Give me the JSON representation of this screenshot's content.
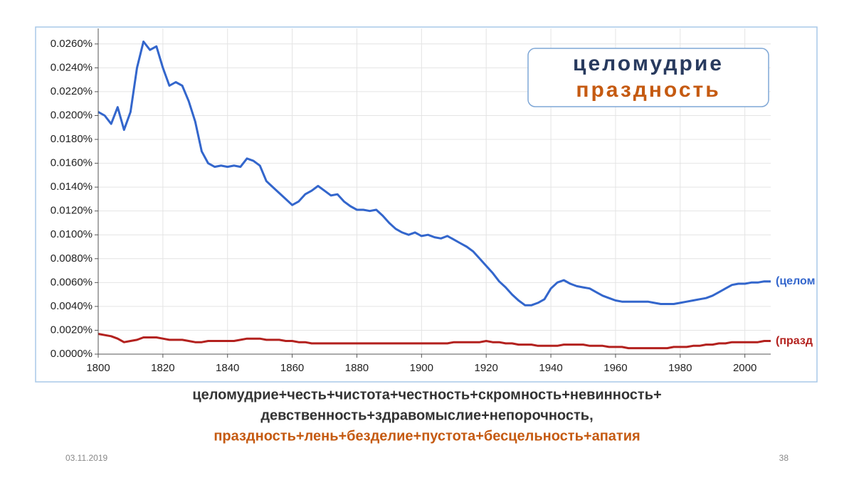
{
  "chart_data": {
    "type": "line",
    "annotation": [
      "целомудрие",
      "праздность"
    ],
    "caption": [
      "целомудрие+честь+чистота+честность+скромность+невинность+",
      "девственность+здравомыслие+непорочность,",
      "праздность+лень+безделие+пустота+бесцельность+апатия"
    ],
    "date": "03.11.2019",
    "page": "38",
    "xlim": [
      1800,
      2008
    ],
    "xticks": [
      1800,
      1820,
      1840,
      1860,
      1880,
      1900,
      1920,
      1940,
      1960,
      1980,
      2000
    ],
    "ylim": [
      0,
      0.0273
    ],
    "yticks": [
      {
        "value": 0,
        "label": "0.0000%"
      },
      {
        "value": 0.002,
        "label": "0.0020%"
      },
      {
        "value": 0.004,
        "label": "0.0040%"
      },
      {
        "value": 0.006,
        "label": "0.0060%"
      },
      {
        "value": 0.008,
        "label": "0.0080%"
      },
      {
        "value": 0.01,
        "label": "0.0100%"
      },
      {
        "value": 0.012,
        "label": "0.0120%"
      },
      {
        "value": 0.014,
        "label": "0.0140%"
      },
      {
        "value": 0.016,
        "label": "0.0160%"
      },
      {
        "value": 0.018,
        "label": "0.0180%"
      },
      {
        "value": 0.02,
        "label": "0.0200%"
      },
      {
        "value": 0.022,
        "label": "0.0220%"
      },
      {
        "value": 0.024,
        "label": "0.0240%"
      },
      {
        "value": 0.026,
        "label": "0.0260%"
      }
    ],
    "grid": true,
    "x": [
      1800,
      1802,
      1804,
      1806,
      1808,
      1810,
      1812,
      1814,
      1816,
      1818,
      1820,
      1822,
      1824,
      1826,
      1828,
      1830,
      1832,
      1834,
      1836,
      1838,
      1840,
      1842,
      1844,
      1846,
      1848,
      1850,
      1852,
      1854,
      1856,
      1858,
      1860,
      1862,
      1864,
      1866,
      1868,
      1870,
      1872,
      1874,
      1876,
      1878,
      1880,
      1882,
      1884,
      1886,
      1888,
      1890,
      1892,
      1894,
      1896,
      1898,
      1900,
      1902,
      1904,
      1906,
      1908,
      1910,
      1912,
      1914,
      1916,
      1918,
      1920,
      1922,
      1924,
      1926,
      1928,
      1930,
      1932,
      1934,
      1936,
      1938,
      1940,
      1942,
      1944,
      1946,
      1948,
      1950,
      1952,
      1954,
      1956,
      1958,
      1960,
      1962,
      1964,
      1966,
      1968,
      1970,
      1972,
      1974,
      1976,
      1978,
      1980,
      1982,
      1984,
      1986,
      1988,
      1990,
      1992,
      1994,
      1996,
      1998,
      2000,
      2002,
      2004,
      2006,
      2008
    ],
    "series": [
      {
        "name": "(целом",
        "color": "#3366cc",
        "values": [
          0.0203,
          0.02,
          0.0193,
          0.0207,
          0.0188,
          0.0203,
          0.024,
          0.0262,
          0.0255,
          0.0258,
          0.024,
          0.0225,
          0.0228,
          0.0225,
          0.0212,
          0.0195,
          0.017,
          0.016,
          0.0157,
          0.0158,
          0.0157,
          0.0158,
          0.0157,
          0.0164,
          0.0162,
          0.0158,
          0.0145,
          0.014,
          0.0135,
          0.013,
          0.0125,
          0.0128,
          0.0134,
          0.0137,
          0.0141,
          0.0137,
          0.0133,
          0.0134,
          0.0128,
          0.0124,
          0.0121,
          0.0121,
          0.012,
          0.0121,
          0.0116,
          0.011,
          0.0105,
          0.0102,
          0.01,
          0.0102,
          0.0099,
          0.01,
          0.0098,
          0.0097,
          0.0099,
          0.0096,
          0.0093,
          0.009,
          0.0086,
          0.008,
          0.0074,
          0.0068,
          0.0061,
          0.0056,
          0.005,
          0.0045,
          0.0041,
          0.0041,
          0.0043,
          0.0046,
          0.0055,
          0.006,
          0.0062,
          0.0059,
          0.0057,
          0.0056,
          0.0055,
          0.0052,
          0.0049,
          0.0047,
          0.0045,
          0.0044,
          0.0044,
          0.0044,
          0.0044,
          0.0044,
          0.0043,
          0.0042,
          0.0042,
          0.0042,
          0.0043,
          0.0044,
          0.0045,
          0.0046,
          0.0047,
          0.0049,
          0.0052,
          0.0055,
          0.0058,
          0.0059,
          0.0059,
          0.006,
          0.006,
          0.0061,
          0.0061
        ]
      },
      {
        "name": "(празд",
        "color": "#b3211e",
        "values": [
          0.0017,
          0.0016,
          0.0015,
          0.0013,
          0.001,
          0.0011,
          0.0012,
          0.0014,
          0.0014,
          0.0014,
          0.0013,
          0.0012,
          0.0012,
          0.0012,
          0.0011,
          0.001,
          0.001,
          0.0011,
          0.0011,
          0.0011,
          0.0011,
          0.0011,
          0.0012,
          0.0013,
          0.0013,
          0.0013,
          0.0012,
          0.0012,
          0.0012,
          0.0011,
          0.0011,
          0.001,
          0.001,
          0.0009,
          0.0009,
          0.0009,
          0.0009,
          0.0009,
          0.0009,
          0.0009,
          0.0009,
          0.0009,
          0.0009,
          0.0009,
          0.0009,
          0.0009,
          0.0009,
          0.0009,
          0.0009,
          0.0009,
          0.0009,
          0.0009,
          0.0009,
          0.0009,
          0.0009,
          0.001,
          0.001,
          0.001,
          0.001,
          0.001,
          0.0011,
          0.001,
          0.001,
          0.0009,
          0.0009,
          0.0008,
          0.0008,
          0.0008,
          0.0007,
          0.0007,
          0.0007,
          0.0007,
          0.0008,
          0.0008,
          0.0008,
          0.0008,
          0.0007,
          0.0007,
          0.0007,
          0.0006,
          0.0006,
          0.0006,
          0.0005,
          0.0005,
          0.0005,
          0.0005,
          0.0005,
          0.0005,
          0.0005,
          0.0006,
          0.0006,
          0.0006,
          0.0007,
          0.0007,
          0.0008,
          0.0008,
          0.0009,
          0.0009,
          0.001,
          0.001,
          0.001,
          0.001,
          0.001,
          0.0011,
          0.0011
        ]
      }
    ]
  }
}
